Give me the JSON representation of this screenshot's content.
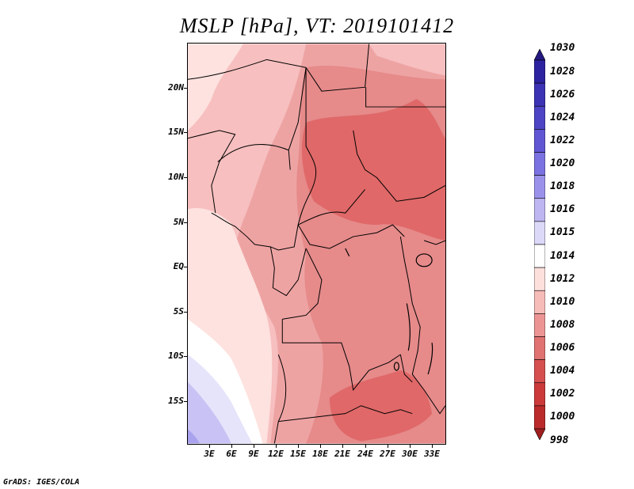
{
  "title": "MSLP [hPa], VT: 2019101412",
  "credit": "GrADS: IGES/COLA",
  "axes": {
    "lat_labels": [
      "20N",
      "15N",
      "10N",
      "5N",
      "EQ",
      "5S",
      "10S",
      "15S"
    ],
    "lon_labels": [
      "3E",
      "6E",
      "9E",
      "12E",
      "15E",
      "18E",
      "21E",
      "24E",
      "27E",
      "30E",
      "33E"
    ]
  },
  "colorbar": {
    "levels": [
      "1030",
      "1028",
      "1026",
      "1024",
      "1022",
      "1020",
      "1018",
      "1016",
      "1015",
      "1014",
      "1012",
      "1010",
      "1008",
      "1006",
      "1004",
      "1002",
      "1000",
      "998"
    ],
    "colors": [
      "#241880",
      "#2d22a0",
      "#3c32b4",
      "#4c44c4",
      "#6056d4",
      "#7a72e0",
      "#9a92ea",
      "#bdb6f0",
      "#dcd8f8",
      "#ffffff",
      "#fde0dc",
      "#f6bcb8",
      "#ec9494",
      "#e07272",
      "#d65050",
      "#cc3a3a",
      "#bb2b2b",
      "#a11e1e"
    ]
  },
  "map": {
    "colors": {
      "c1004": "#e06868",
      "c1006": "#e68a8a",
      "c1008": "#eea3a3",
      "c1010": "#f7bfbf",
      "c1012": "#fde2df",
      "c1014": "#ffffff",
      "c1015": "#e6e4fa",
      "c1016": "#c8c3f4",
      "c1018": "#a9a2ee",
      "border": "#000000"
    }
  }
}
